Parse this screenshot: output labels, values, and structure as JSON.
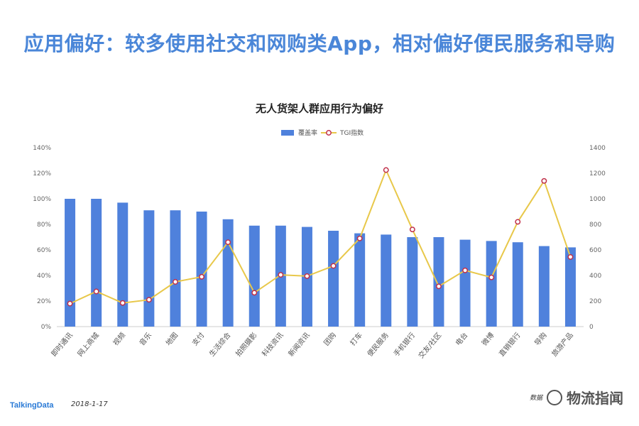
{
  "headline": "应用偏好：较多使用社交和网购类App，相对偏好便民服务和导购",
  "footer": {
    "brand": "TalkingData",
    "date": "2018-1-17",
    "source": "数据",
    "watermark": "物流指闻"
  },
  "colors": {
    "bar": "#4f81dc",
    "line": "#e8c84a",
    "marker_edge": "#c0304a",
    "headline": "#4a86d8"
  },
  "chart_data": {
    "type": "bar",
    "title": "无人货架人群应用行为偏好",
    "legend_position": "top-center",
    "grid": false,
    "categories": [
      "即时通讯",
      "网上商城",
      "视频",
      "音乐",
      "地图",
      "支付",
      "生活综合",
      "拍照摄影",
      "科技资讯",
      "新闻资讯",
      "团购",
      "打车",
      "便民服务",
      "手机银行",
      "交友/社区",
      "电台",
      "微博",
      "直销银行",
      "导购",
      "旅游产品"
    ],
    "series": [
      {
        "name": "覆盖率",
        "type": "bar",
        "axis": "left",
        "values": [
          100,
          100,
          97,
          91,
          91,
          90,
          84,
          79,
          79,
          78,
          75,
          73,
          72,
          70,
          70,
          68,
          67,
          66,
          63,
          62
        ]
      },
      {
        "name": "TGI指数",
        "type": "line",
        "axis": "right",
        "values": [
          180,
          275,
          185,
          210,
          350,
          390,
          660,
          265,
          405,
          395,
          475,
          690,
          1225,
          760,
          315,
          440,
          385,
          820,
          1140,
          545
        ]
      }
    ],
    "y_left": {
      "ylim": [
        0,
        140
      ],
      "ticks": [
        "0%",
        "20%",
        "40%",
        "60%",
        "80%",
        "100%",
        "120%",
        "140%"
      ]
    },
    "y_right": {
      "ylim": [
        0,
        1400
      ],
      "ticks": [
        "0",
        "200",
        "400",
        "600",
        "800",
        "1000",
        "1200",
        "1400"
      ]
    }
  }
}
